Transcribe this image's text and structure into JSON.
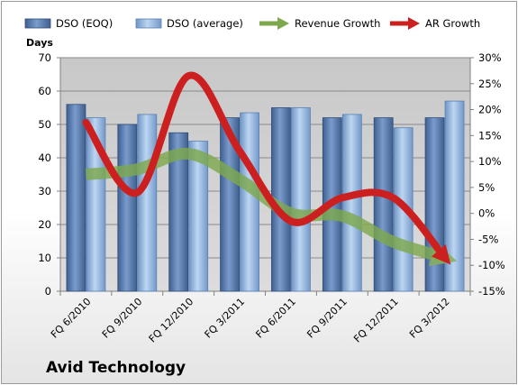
{
  "company_name": "Avid Technology",
  "chart_data": {
    "type": "bar",
    "categories": [
      "FQ 6/2010",
      "FQ 9/2010",
      "FQ 12/2010",
      "FQ 3/2011",
      "FQ 6/2011",
      "FQ 9/2011",
      "FQ 12/2011",
      "FQ 3/2012"
    ],
    "ylabel": "Days",
    "ylim": [
      0,
      70
    ],
    "yticks": [
      0,
      10,
      20,
      30,
      40,
      50,
      60,
      70
    ],
    "y2lim": [
      -15,
      30
    ],
    "y2ticks": [
      "-15%",
      "-10%",
      "-5%",
      "0%",
      "5%",
      "10%",
      "15%",
      "20%",
      "25%",
      "30%"
    ],
    "y2values": [
      -15,
      -10,
      -5,
      0,
      5,
      10,
      15,
      20,
      25,
      30
    ],
    "grid": true,
    "legend_position": "top",
    "series": [
      {
        "name": "DSO (EOQ)",
        "type": "bar",
        "axis": "left",
        "color": "#5a7fb5",
        "values": [
          56,
          50,
          47.5,
          52,
          55,
          52,
          52,
          52
        ]
      },
      {
        "name": "DSO (average)",
        "type": "bar",
        "axis": "left",
        "color": "#9cc0e6",
        "values": [
          52,
          53,
          45,
          53.5,
          55,
          53,
          49,
          57
        ]
      },
      {
        "name": "Revenue Growth",
        "type": "arrow-line",
        "axis": "right",
        "color": "#7ea84e",
        "values": [
          7.5,
          8.5,
          11.5,
          6.5,
          0,
          -0.5,
          -5.5,
          -8.5
        ]
      },
      {
        "name": "AR Growth",
        "type": "arrow-line",
        "axis": "right",
        "color": "#cc1f1f",
        "values": [
          17.5,
          4,
          26.5,
          12,
          -1.5,
          3,
          3,
          -8.5
        ]
      }
    ]
  }
}
